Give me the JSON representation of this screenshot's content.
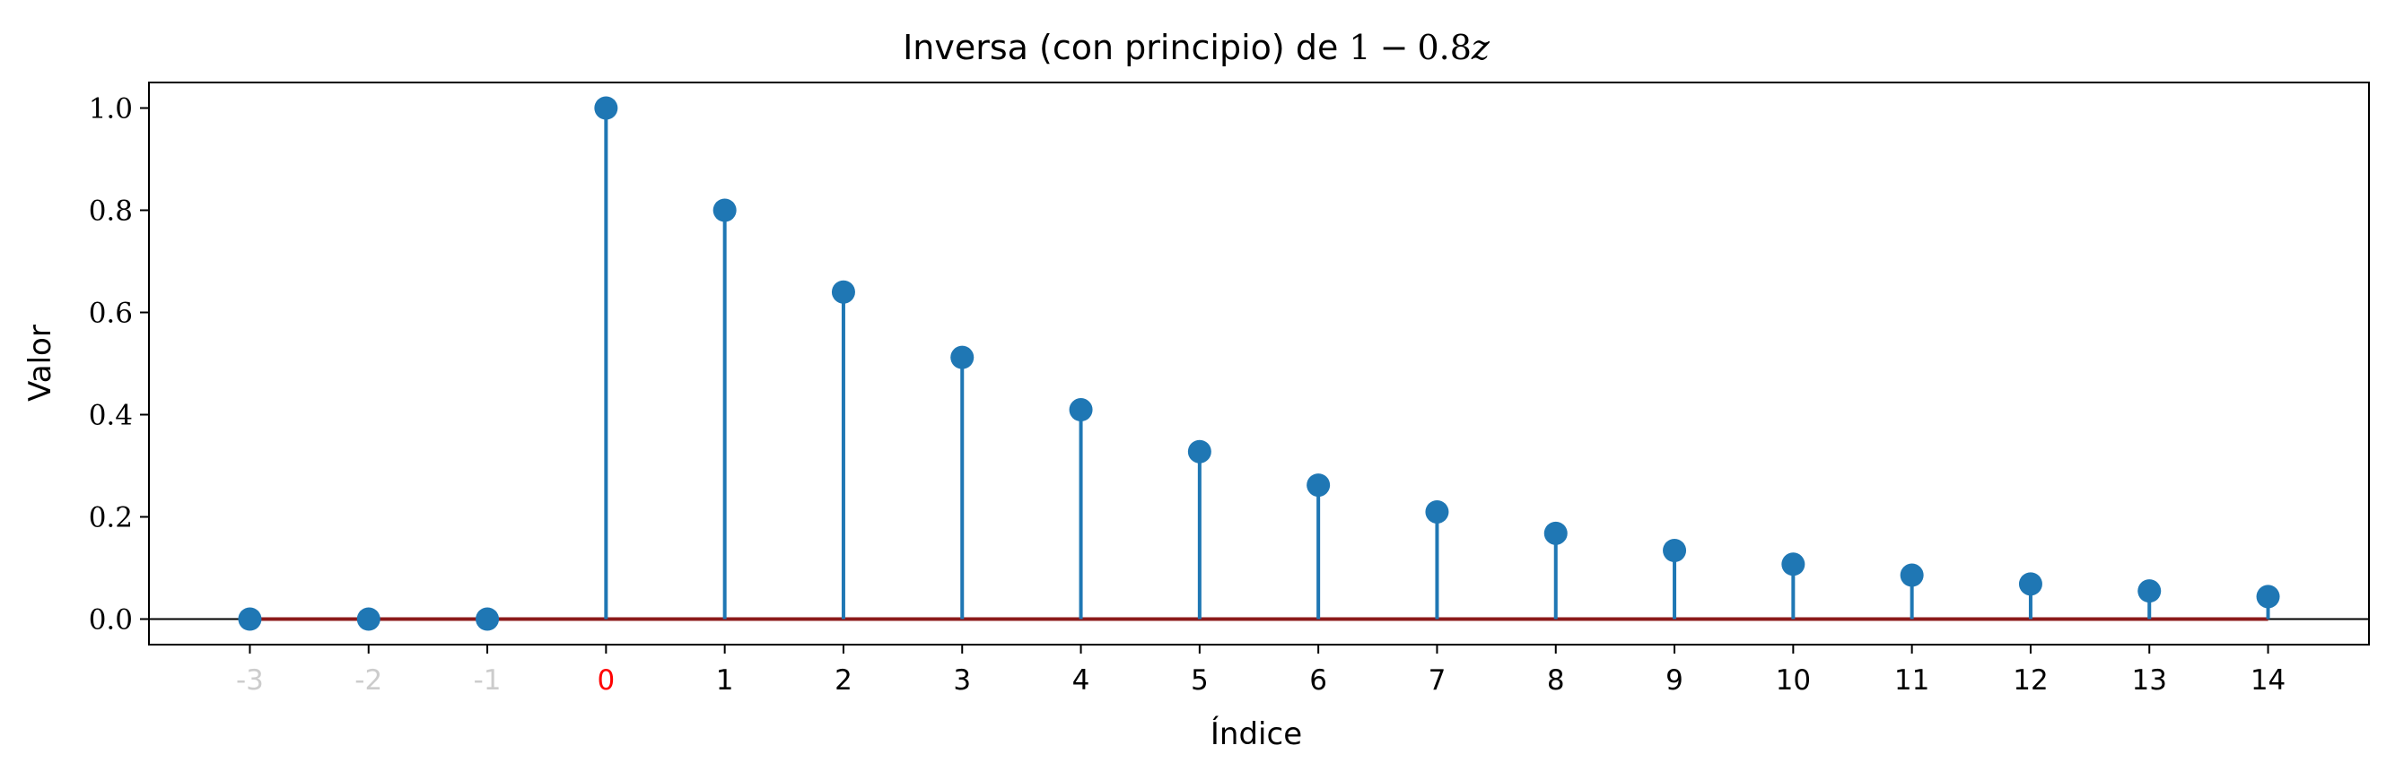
{
  "chart_data": {
    "type": "stem",
    "title": "Inversa (con principio) de 1 − 0.8z",
    "title_parts": {
      "text": "Inversa (con principio) de ",
      "math_one": "1",
      "math_minus": "−",
      "math_coef": "0.8",
      "math_var": "z"
    },
    "xlabel": "Índice",
    "ylabel": "Valor",
    "x": [
      -3,
      -2,
      -1,
      0,
      1,
      2,
      3,
      4,
      5,
      6,
      7,
      8,
      9,
      10,
      11,
      12,
      13,
      14
    ],
    "values": [
      0,
      0,
      0,
      1.0,
      0.8,
      0.64,
      0.512,
      0.4096,
      0.32768,
      0.262144,
      0.2097152,
      0.16777216,
      0.134217728,
      0.1073741824,
      0.08589934592,
      0.068719476736,
      0.0549755813888,
      0.04398046511104
    ],
    "x_tick_labels": [
      "-3",
      "-2",
      "-1",
      "0",
      "1",
      "2",
      "3",
      "4",
      "5",
      "6",
      "7",
      "8",
      "9",
      "10",
      "11",
      "12",
      "13",
      "14"
    ],
    "x_tick_colors": [
      "#cccccc",
      "#cccccc",
      "#cccccc",
      "#ff0000",
      "#000000",
      "#000000",
      "#000000",
      "#000000",
      "#000000",
      "#000000",
      "#000000",
      "#000000",
      "#000000",
      "#000000",
      "#000000",
      "#000000",
      "#000000",
      "#000000"
    ],
    "y_ticks": [
      0.0,
      0.2,
      0.4,
      0.6,
      0.8,
      1.0
    ],
    "y_tick_labels": [
      "0.0",
      "0.2",
      "0.4",
      "0.6",
      "0.8",
      "1.0"
    ],
    "xlim": [
      -3.85,
      14.85
    ],
    "ylim": [
      -0.05,
      1.05
    ],
    "grid": false,
    "legend": "none",
    "colors": {
      "stem": "#1f77b4",
      "baseline": "#8b1a1a",
      "zero_line": "#000000",
      "axes": "#000000"
    }
  }
}
